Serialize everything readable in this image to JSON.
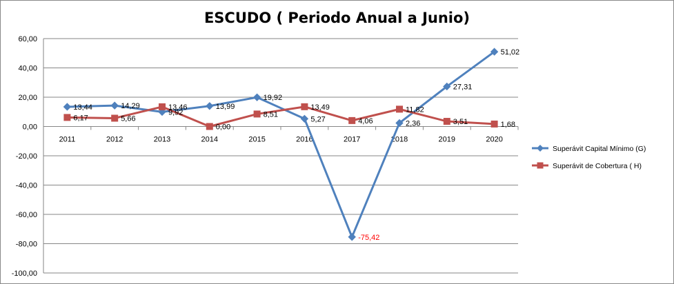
{
  "chart_data": {
    "type": "line",
    "title": "ESCUDO ( Periodo Anual a Junio)",
    "categories": [
      "2011",
      "2012",
      "2013",
      "2014",
      "2015",
      "2016",
      "2017",
      "2018",
      "2019",
      "2020"
    ],
    "ylim": [
      -100,
      60
    ],
    "ytick_labels": [
      "60,00",
      "40,00",
      "20,00",
      "0,00",
      "-20,00",
      "-40,00",
      "-60,00",
      "-80,00",
      "-100,00"
    ],
    "grid": true,
    "legend_position": "right",
    "series": [
      {
        "name": "Superávit Capital Mínimo  (G)",
        "color": "#4F81BD",
        "marker": "diamond",
        "values": [
          13.44,
          14.29,
          9.92,
          13.99,
          19.92,
          5.27,
          -75.42,
          2.36,
          27.31,
          51.02
        ],
        "labels": [
          "13,44",
          "14,29",
          "9,92",
          "13,99",
          "19,92",
          "5,27",
          "-75,42",
          "2,36",
          "27,31",
          "51,02"
        ],
        "label_colors": [
          "#000000",
          "#000000",
          "#000000",
          "#000000",
          "#000000",
          "#000000",
          "#FF0000",
          "#000000",
          "#000000",
          "#000000"
        ]
      },
      {
        "name": "Superávit de Cobertura ( H)",
        "color": "#C0504D",
        "marker": "square",
        "values": [
          6.17,
          5.66,
          13.46,
          0.0,
          8.51,
          13.49,
          4.06,
          11.82,
          3.51,
          1.68
        ],
        "labels": [
          "6,17",
          "5,66",
          "13,46",
          "0,00",
          "8,51",
          "13,49",
          "4,06",
          "11,82",
          "3,51",
          "1,68"
        ],
        "label_colors": [
          "#000000",
          "#000000",
          "#000000",
          "#000000",
          "#000000",
          "#000000",
          "#000000",
          "#000000",
          "#000000",
          "#000000"
        ]
      }
    ]
  }
}
